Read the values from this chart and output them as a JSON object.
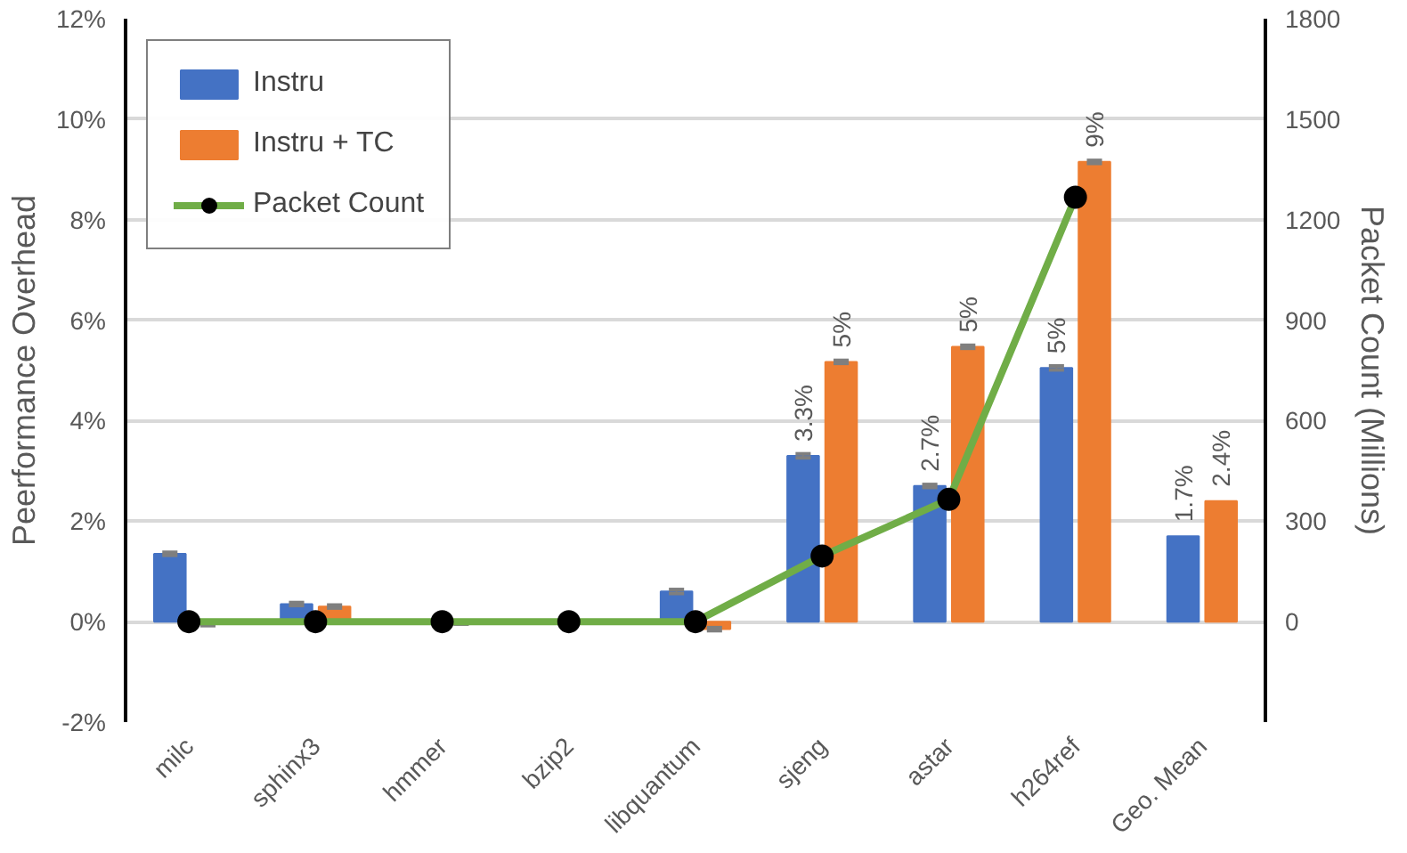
{
  "chart_data": {
    "type": "bar",
    "ylabel": "Peerformance Overhead",
    "y2label": "Packet Count (Millions)",
    "categories": [
      "milc",
      "sphinx3",
      "hmmer",
      "bzip2",
      "libquantum",
      "sjeng",
      "astar",
      "h264ref",
      "Geo. Mean"
    ],
    "series": [
      {
        "name": "Instru",
        "color": "#4472c4",
        "values": [
          1.35,
          0.35,
          null,
          null,
          0.6,
          3.3,
          2.7,
          5.05,
          1.7
        ],
        "errors": [
          0.03,
          0.03,
          null,
          null,
          0.04,
          0.04,
          0.03,
          0.04,
          null
        ],
        "value_labels": [
          null,
          null,
          null,
          null,
          null,
          "3.3%",
          "2.7%",
          "5%",
          "1.7%"
        ]
      },
      {
        "name": "Instru + TC",
        "color": "#ed7d31",
        "values": [
          -0.05,
          0.3,
          -0.03,
          null,
          -0.15,
          5.17,
          5.47,
          9.15,
          2.4
        ],
        "errors": [
          0.03,
          0.03,
          0.02,
          null,
          0.03,
          0.03,
          0.03,
          0.03,
          null
        ],
        "value_labels": [
          null,
          null,
          null,
          null,
          null,
          "5%",
          "5%",
          "9%",
          "2.4%"
        ]
      },
      {
        "name": "Packet Count",
        "type": "line",
        "axis": "y2",
        "color": "#70ad47",
        "marker": "circle",
        "values": [
          0,
          0,
          0,
          0,
          0,
          196,
          365,
          1267,
          null
        ]
      }
    ],
    "ylim": [
      -2,
      12
    ],
    "yticks": [
      {
        "value": -2,
        "label": "-2%"
      },
      {
        "value": 0,
        "label": "0%"
      },
      {
        "value": 2,
        "label": "2%"
      },
      {
        "value": 4,
        "label": "4%"
      },
      {
        "value": 6,
        "label": "6%"
      },
      {
        "value": 8,
        "label": "8%"
      },
      {
        "value": 10,
        "label": "10%"
      },
      {
        "value": 12,
        "label": "12%"
      }
    ],
    "y2lim": [
      -300,
      1800
    ],
    "y2ticks": [
      0,
      300,
      600,
      900,
      1200,
      1500,
      1800
    ],
    "grid": "y",
    "legend": "top left"
  }
}
